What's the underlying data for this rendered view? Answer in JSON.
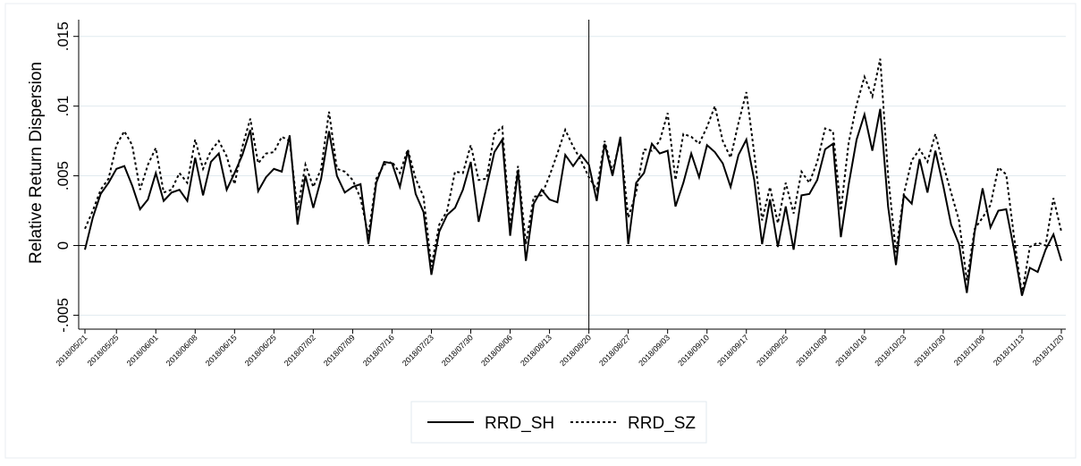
{
  "chart_data": {
    "type": "line",
    "y_label": "Relative Return Dispersion",
    "categories": [
      "2018/05/21",
      null,
      null,
      null,
      "2018/05/25",
      null,
      null,
      null,
      null,
      "2018/06/01",
      null,
      null,
      null,
      null,
      "2018/06/08",
      null,
      null,
      null,
      null,
      "2018/06/15",
      null,
      null,
      null,
      null,
      "2018/06/25",
      null,
      null,
      null,
      null,
      "2018/07/02",
      null,
      null,
      null,
      null,
      "2018/07/09",
      null,
      null,
      null,
      null,
      "2018/07/16",
      null,
      null,
      null,
      null,
      "2018/07/23",
      null,
      null,
      null,
      null,
      "2018/07/30",
      null,
      null,
      null,
      null,
      "2018/08/06",
      null,
      null,
      null,
      null,
      "2018/08/13",
      null,
      null,
      null,
      null,
      "2018/08/20",
      null,
      null,
      null,
      null,
      "2018/08/27",
      null,
      null,
      null,
      null,
      "2018/09/03",
      null,
      null,
      null,
      null,
      "2018/09/10",
      null,
      null,
      null,
      null,
      "2018/09/17",
      null,
      null,
      null,
      null,
      "2018/09/25",
      null,
      null,
      null,
      null,
      "2018/10/09",
      null,
      null,
      null,
      null,
      "2018/10/16",
      null,
      null,
      null,
      null,
      "2018/10/23",
      null,
      null,
      null,
      null,
      "2018/10/30",
      null,
      null,
      null,
      null,
      "2018/11/06",
      null,
      null,
      null,
      null,
      "2018/11/13",
      null,
      null,
      null,
      null,
      "2018/11/20"
    ],
    "series": [
      {
        "name": "RRD_SH",
        "color": "#000000",
        "dash": "solid",
        "values": [
          -0.0003,
          0.002,
          0.0037,
          0.0045,
          0.0055,
          0.0057,
          0.0043,
          0.0026,
          0.0033,
          0.0052,
          0.0032,
          0.0038,
          0.004,
          0.0032,
          0.0063,
          0.0036,
          0.006,
          0.0066,
          0.004,
          0.0052,
          0.0065,
          0.0083,
          0.0039,
          0.0049,
          0.0055,
          0.0053,
          0.0079,
          0.0015,
          0.005,
          0.0027,
          0.0048,
          0.0082,
          0.005,
          0.0038,
          0.0042,
          0.0044,
          0.0001,
          0.0045,
          0.006,
          0.0059,
          0.0042,
          0.0068,
          0.0037,
          0.0024,
          -0.0021,
          0.001,
          0.0022,
          0.0027,
          0.004,
          0.006,
          0.0017,
          0.0042,
          0.0067,
          0.0076,
          0.0007,
          0.0054,
          -0.0011,
          0.003,
          0.004,
          0.0033,
          0.0031,
          0.0065,
          0.0057,
          0.0065,
          0.0058,
          0.0032,
          0.0073,
          0.005,
          0.0078,
          0.0001,
          0.0045,
          0.0052,
          0.0073,
          0.0066,
          0.0068,
          0.0028,
          0.0045,
          0.0066,
          0.0049,
          0.0072,
          0.0067,
          0.0059,
          0.0042,
          0.0065,
          0.0076,
          0.0047,
          0.0001,
          0.0033,
          -0.0001,
          0.0028,
          -0.0003,
          0.0036,
          0.0037,
          0.0047,
          0.0069,
          0.0073,
          0.0006,
          0.0044,
          0.0076,
          0.0094,
          0.0068,
          0.0098,
          0.0028,
          -0.0014,
          0.0036,
          0.003,
          0.0062,
          0.0038,
          0.0068,
          0.0043,
          0.0015,
          0.0001,
          -0.0034,
          0.001,
          0.0041,
          0.0013,
          0.0025,
          0.0026,
          -0.0003,
          -0.0036,
          -0.0016,
          -0.0019,
          -0.0003,
          0.0008,
          -0.0011
        ]
      },
      {
        "name": "RRD_SZ",
        "color": "#000000",
        "dash": "dot",
        "values": [
          0.0012,
          0.0025,
          0.004,
          0.0048,
          0.0072,
          0.0082,
          0.0072,
          0.004,
          0.0058,
          0.007,
          0.0038,
          0.004,
          0.0052,
          0.0045,
          0.0076,
          0.0055,
          0.0068,
          0.0075,
          0.0064,
          0.0044,
          0.0071,
          0.0091,
          0.0059,
          0.0066,
          0.0067,
          0.0078,
          0.0075,
          0.0025,
          0.0058,
          0.0042,
          0.0055,
          0.0096,
          0.0055,
          0.0053,
          0.0047,
          0.0034,
          0.0007,
          0.0048,
          0.0058,
          0.006,
          0.0052,
          0.0069,
          0.0048,
          0.0035,
          -0.0015,
          0.0015,
          0.0025,
          0.0053,
          0.0052,
          0.0072,
          0.0047,
          0.0048,
          0.008,
          0.0085,
          0.0013,
          0.0057,
          0.0001,
          0.0035,
          0.0036,
          0.005,
          0.0066,
          0.0083,
          0.0071,
          0.0061,
          0.0049,
          0.004,
          0.0075,
          0.0053,
          0.0076,
          0.002,
          0.0038,
          0.0069,
          0.0068,
          0.0075,
          0.0095,
          0.0047,
          0.008,
          0.0078,
          0.0073,
          0.0085,
          0.01,
          0.0075,
          0.0063,
          0.0088,
          0.011,
          0.0066,
          0.0018,
          0.0042,
          0.0016,
          0.0045,
          0.0023,
          0.0053,
          0.0045,
          0.006,
          0.0084,
          0.0082,
          0.0025,
          0.0074,
          0.0101,
          0.0121,
          0.0107,
          0.0134,
          0.005,
          -0.0005,
          0.0037,
          0.0061,
          0.0069,
          0.006,
          0.008,
          0.0058,
          0.0038,
          0.0018,
          -0.0025,
          0.0012,
          0.002,
          0.0029,
          0.0056,
          0.0051,
          0.0006,
          -0.0035,
          -0.0001,
          0.0002,
          0,
          0.0034,
          0.001
        ]
      }
    ],
    "ylim": [
      -0.006,
      0.0162
    ],
    "yticks": [
      {
        "value": -0.005,
        "label": "-.005"
      },
      0,
      {
        "value": 0.005,
        "label": ".005"
      },
      {
        "value": 0.01,
        "label": ".01"
      },
      {
        "value": 0.015,
        "label": ".015"
      }
    ],
    "grid": true,
    "hline": 0,
    "vline": "2018/08/20",
    "legend": "bottom"
  }
}
